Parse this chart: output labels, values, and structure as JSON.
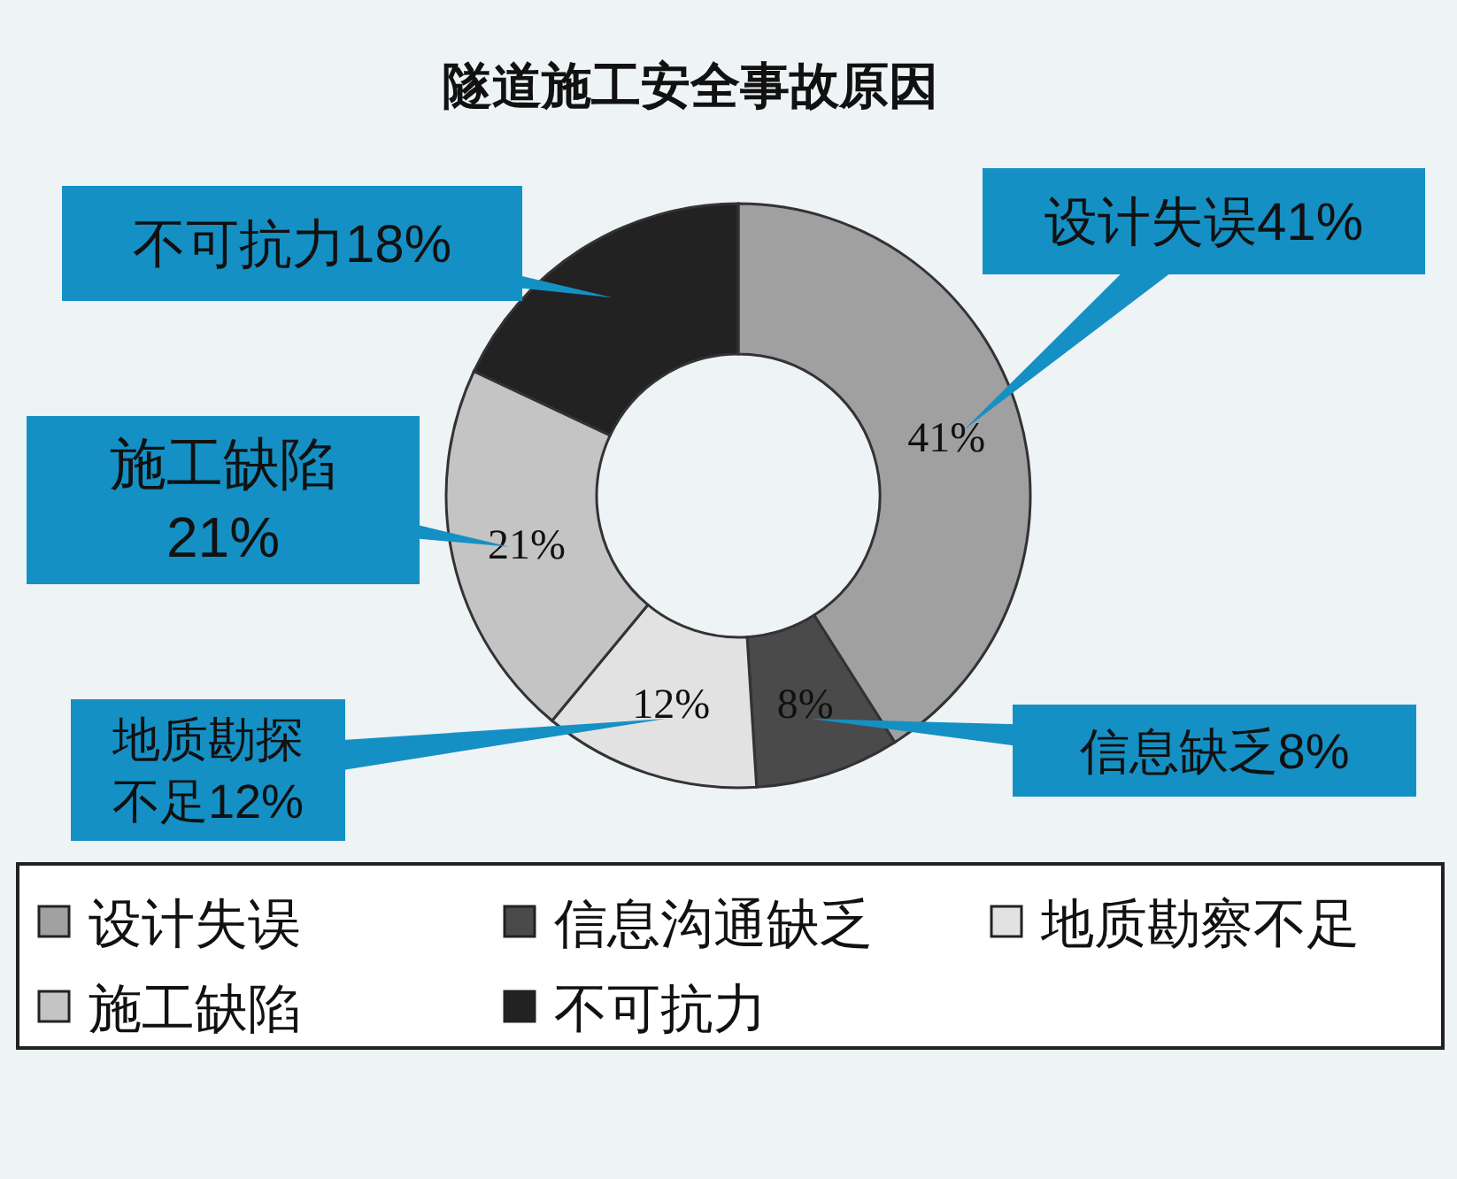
{
  "chart_data": {
    "type": "donut",
    "title": "隧道施工安全事故原因",
    "categories": [
      "设计失误",
      "信息沟通缺乏",
      "地质勘察不足",
      "施工缺陷",
      "不可抗力"
    ],
    "values": [
      41,
      8,
      12,
      21,
      18
    ],
    "colors": [
      "#a0a0a0",
      "#4a4a4a",
      "#e2e2e2",
      "#c4c4c4",
      "#222222"
    ],
    "value_labels": [
      "41%",
      "8%",
      "12%",
      "21%",
      null
    ],
    "annotations": [
      "设计失误41%",
      "不可抗力18%",
      "施工缺陷21%",
      "地质勘探不足12%",
      "信息缺乏8%"
    ],
    "legend": "bottom"
  }
}
